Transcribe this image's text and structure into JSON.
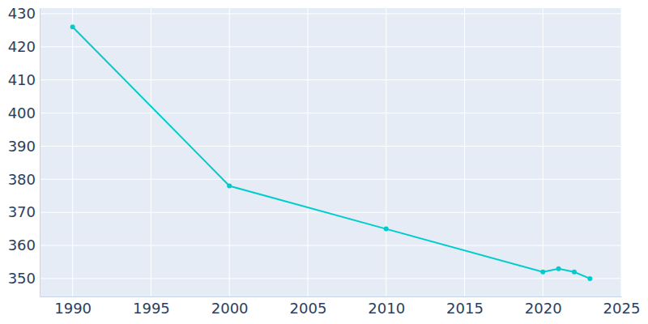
{
  "chart_data": {
    "type": "line",
    "x": [
      1990,
      2000,
      2010,
      2020,
      2021,
      2022,
      2023
    ],
    "values": [
      426,
      378,
      365,
      352,
      353,
      352,
      350
    ],
    "color": "#00cccc",
    "marker": "circle",
    "xlim": [
      1987.9,
      2025
    ],
    "xticks": [
      1990,
      1995,
      2000,
      2005,
      2010,
      2015,
      2020,
      2025
    ],
    "ylim": [
      344.6,
      431.7
    ],
    "yticks": [
      350,
      360,
      370,
      380,
      390,
      400,
      410,
      420,
      430
    ],
    "grid": true
  }
}
